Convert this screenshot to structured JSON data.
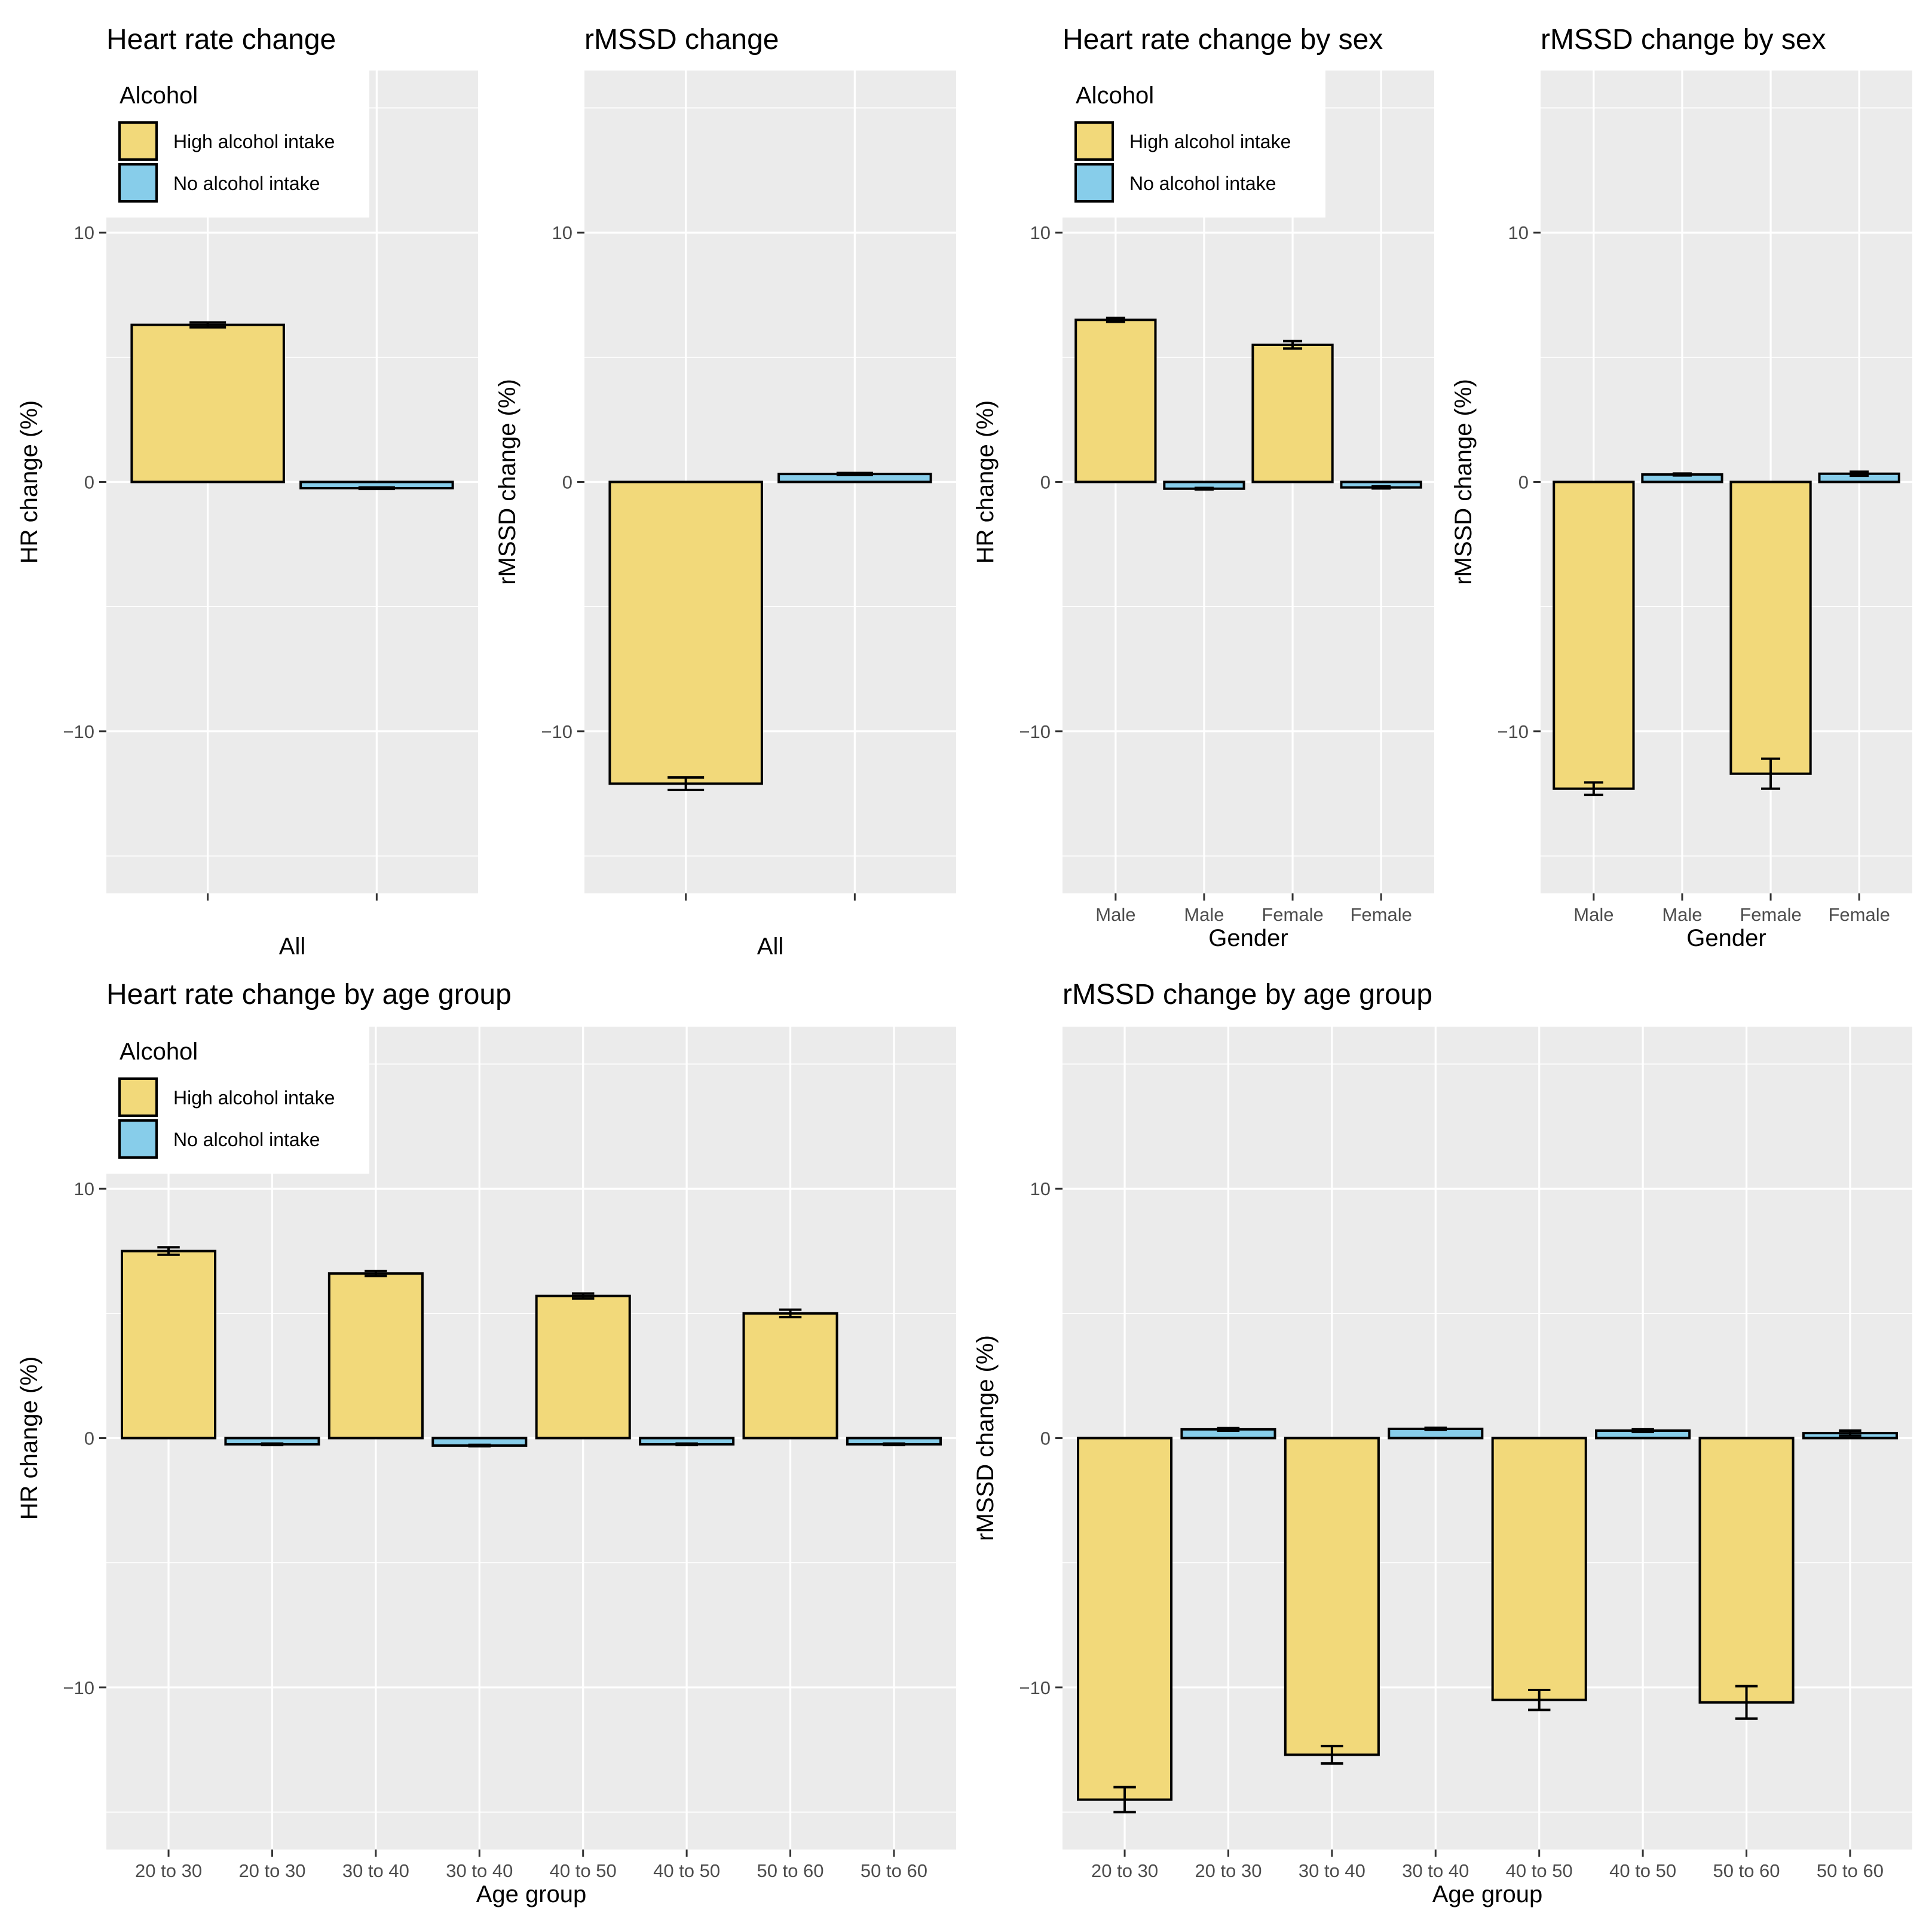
{
  "colors": {
    "high": "#F2D97A",
    "none": "#87CDEA",
    "panel_bg": "#EBEBEB",
    "grid": "#FFFFFF"
  },
  "legend": {
    "title": "Alcohol",
    "items": [
      {
        "label": "High alcohol intake",
        "color": "#F2D97A"
      },
      {
        "label": "No alcohol intake",
        "color": "#87CDEA"
      }
    ]
  },
  "chart_data": [
    {
      "type": "bar",
      "title": "Heart rate change",
      "ylabel": "HR change (%)",
      "xlabel": "All",
      "ylim": [
        -16.5,
        16.5
      ],
      "yticks": [
        -10,
        0,
        10
      ],
      "ytick_labels": [
        "−10",
        "0",
        "10"
      ],
      "categories": [
        "",
        ""
      ],
      "series": [
        "High alcohol intake",
        "No alcohol intake"
      ],
      "values": [
        6.3,
        -0.25
      ],
      "errors": [
        0.1,
        0.03
      ],
      "legend": true
    },
    {
      "type": "bar",
      "title": "rMSSD change",
      "ylabel": "rMSSD change (%)",
      "xlabel": "All",
      "ylim": [
        -16.5,
        16.5
      ],
      "yticks": [
        -10,
        0,
        10
      ],
      "ytick_labels": [
        "−10",
        "0",
        "10"
      ],
      "categories": [
        "",
        ""
      ],
      "series": [
        "High alcohol intake",
        "No alcohol intake"
      ],
      "values": [
        -12.1,
        0.32
      ],
      "errors": [
        0.25,
        0.04
      ],
      "legend": false
    },
    {
      "type": "bar",
      "title": "Heart rate change by sex",
      "ylabel": "HR change (%)",
      "xlabel": "Gender",
      "ylim": [
        -16.5,
        16.5
      ],
      "yticks": [
        -10,
        0,
        10
      ],
      "ytick_labels": [
        "−10",
        "0",
        "10"
      ],
      "categories": [
        "Male",
        "Male",
        "Female",
        "Female"
      ],
      "series": [
        "High alcohol intake",
        "No alcohol intake",
        "High alcohol intake",
        "No alcohol intake"
      ],
      "values": [
        6.5,
        -0.27,
        5.5,
        -0.22
      ],
      "errors": [
        0.08,
        0.03,
        0.15,
        0.04
      ],
      "legend": true
    },
    {
      "type": "bar",
      "title": "rMSSD change by sex",
      "ylabel": "rMSSD change (%)",
      "xlabel": "Gender",
      "ylim": [
        -16.5,
        16.5
      ],
      "yticks": [
        -10,
        0,
        10
      ],
      "ytick_labels": [
        "−10",
        "0",
        "10"
      ],
      "categories": [
        "Male",
        "Male",
        "Female",
        "Female"
      ],
      "series": [
        "High alcohol intake",
        "No alcohol intake",
        "High alcohol intake",
        "No alcohol intake"
      ],
      "values": [
        -12.3,
        0.3,
        -11.7,
        0.33
      ],
      "errors": [
        0.25,
        0.04,
        0.6,
        0.08
      ],
      "legend": false
    },
    {
      "type": "bar",
      "title": "Heart rate change by age group",
      "ylabel": "HR change (%)",
      "xlabel": "Age group",
      "ylim": [
        -16.5,
        16.5
      ],
      "yticks": [
        -10,
        0,
        10
      ],
      "ytick_labels": [
        "−10",
        "0",
        "10"
      ],
      "categories": [
        "20 to 30",
        "20 to 30",
        "30 to 40",
        "30 to 40",
        "40 to 50",
        "40 to 50",
        "50 to 60",
        "50 to 60"
      ],
      "series": [
        "High alcohol intake",
        "No alcohol intake",
        "High alcohol intake",
        "No alcohol intake",
        "High alcohol intake",
        "No alcohol intake",
        "High alcohol intake",
        "No alcohol intake"
      ],
      "values": [
        7.5,
        -0.25,
        6.6,
        -0.3,
        5.7,
        -0.25,
        5.0,
        -0.25
      ],
      "errors": [
        0.15,
        0.03,
        0.1,
        0.03,
        0.1,
        0.03,
        0.15,
        0.03
      ],
      "legend": true
    },
    {
      "type": "bar",
      "title": "rMSSD change by age group",
      "ylabel": "rMSSD change (%)",
      "xlabel": "Age group",
      "ylim": [
        -16.5,
        16.5
      ],
      "yticks": [
        -10,
        0,
        10
      ],
      "ytick_labels": [
        "−10",
        "0",
        "10"
      ],
      "categories": [
        "20 to 30",
        "20 to 30",
        "30 to 40",
        "30 to 40",
        "40 to 50",
        "40 to 50",
        "50 to 60",
        "50 to 60"
      ],
      "series": [
        "High alcohol intake",
        "No alcohol intake",
        "High alcohol intake",
        "No alcohol intake",
        "High alcohol intake",
        "No alcohol intake",
        "High alcohol intake",
        "No alcohol intake"
      ],
      "values": [
        -14.5,
        0.35,
        -12.7,
        0.37,
        -10.5,
        0.3,
        -10.6,
        0.2
      ],
      "errors": [
        0.5,
        0.05,
        0.35,
        0.04,
        0.4,
        0.05,
        0.65,
        0.1
      ],
      "legend": false
    }
  ]
}
